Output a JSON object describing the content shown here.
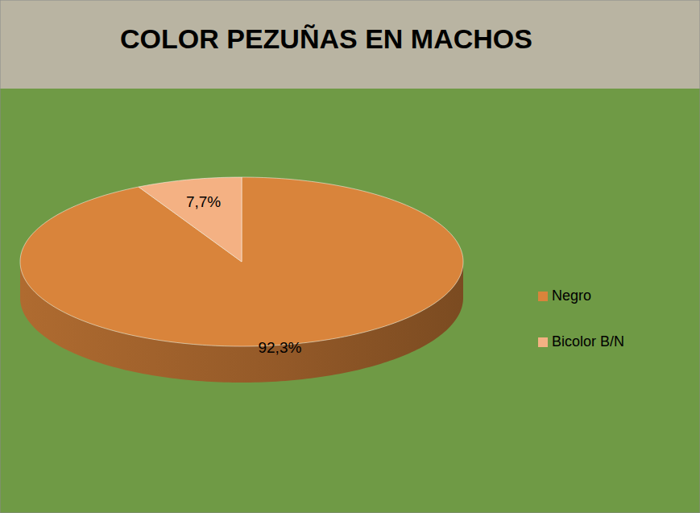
{
  "chart_data": {
    "type": "pie",
    "title": "COLOR PEZUÑAS EN MACHOS",
    "categories": [
      "Negro",
      "Bicolor B/N"
    ],
    "values": [
      92.3,
      7.7
    ],
    "value_labels": [
      "92,3%",
      "7,7%"
    ],
    "colors": [
      "#d9843b",
      "#f4b183"
    ],
    "data_labels": true,
    "legend": "right"
  }
}
